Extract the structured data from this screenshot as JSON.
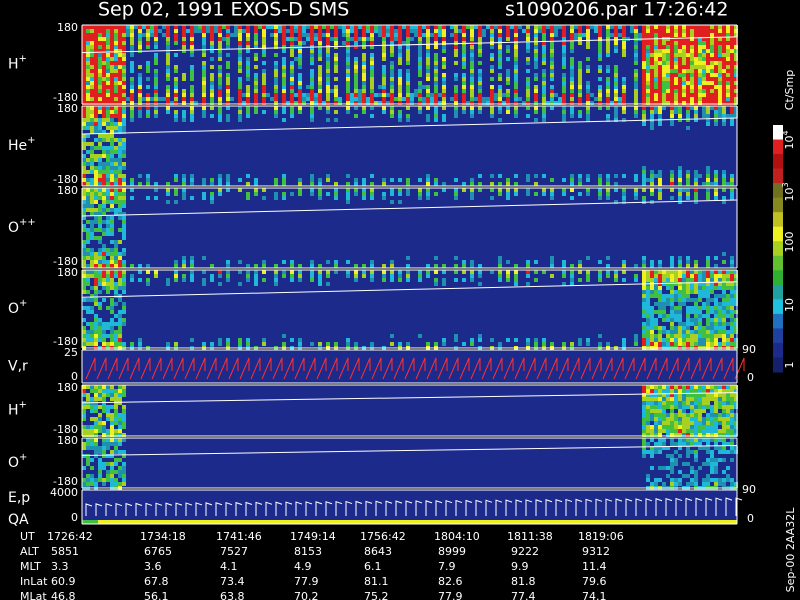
{
  "header": {
    "title": "Sep 02, 1991   EXOS-D SMS",
    "file_time": "s1090206.par  17:26:42"
  },
  "panels": [
    {
      "label": "H",
      "charge": "+",
      "top": "180",
      "bottom": "-180"
    },
    {
      "label": "He",
      "charge": "+",
      "top": "180",
      "bottom": "-180"
    },
    {
      "label": "O",
      "charge": "++",
      "top": "180",
      "bottom": "-180"
    },
    {
      "label": "O",
      "charge": "+",
      "top": "180",
      "bottom": "-180"
    },
    {
      "label": "V,r",
      "top": "25",
      "bottom": "0",
      "right_top": "90",
      "right_bottom": "0"
    },
    {
      "label": "H",
      "charge": "+",
      "top": "180",
      "bottom": "-180"
    },
    {
      "label": "O",
      "charge": "+",
      "top": "180",
      "bottom": "-180"
    },
    {
      "label": "E,p",
      "label2": "QA",
      "top": "4000",
      "bottom": "0",
      "right_top": "90",
      "right_bottom": "0"
    }
  ],
  "colorbar": {
    "unit": "Ct/Smp",
    "ticks": [
      {
        "base": "10",
        "exp": "4"
      },
      {
        "base": "10",
        "exp": "3"
      },
      {
        "base": "100"
      },
      {
        "base": "10"
      },
      {
        "base": "1"
      }
    ]
  },
  "table": {
    "rows": [
      {
        "label": "UT",
        "values": [
          "1726:42",
          "1734:18",
          "1741:46",
          "1749:14",
          "1756:42",
          "1804:10",
          "1811:38",
          "1819:06"
        ]
      },
      {
        "label": "ALT",
        "values": [
          "5851",
          "6765",
          "7527",
          "8153",
          "8643",
          "8999",
          "9222",
          "9312"
        ]
      },
      {
        "label": "MLT",
        "values": [
          "3.3",
          "3.6",
          "4.1",
          "4.9",
          "6.1",
          "7.9",
          "9.9",
          "11.4"
        ]
      },
      {
        "label": "InLat",
        "values": [
          "60.9",
          "67.8",
          "73.4",
          "77.9",
          "81.1",
          "82.6",
          "81.8",
          "79.6"
        ]
      },
      {
        "label": "MLat",
        "values": [
          "46.8",
          "56.1",
          "63.8",
          "70.2",
          "75.2",
          "77.9",
          "77.4",
          "74.1"
        ]
      }
    ]
  },
  "footer": "Sep-00 2AA32L"
}
